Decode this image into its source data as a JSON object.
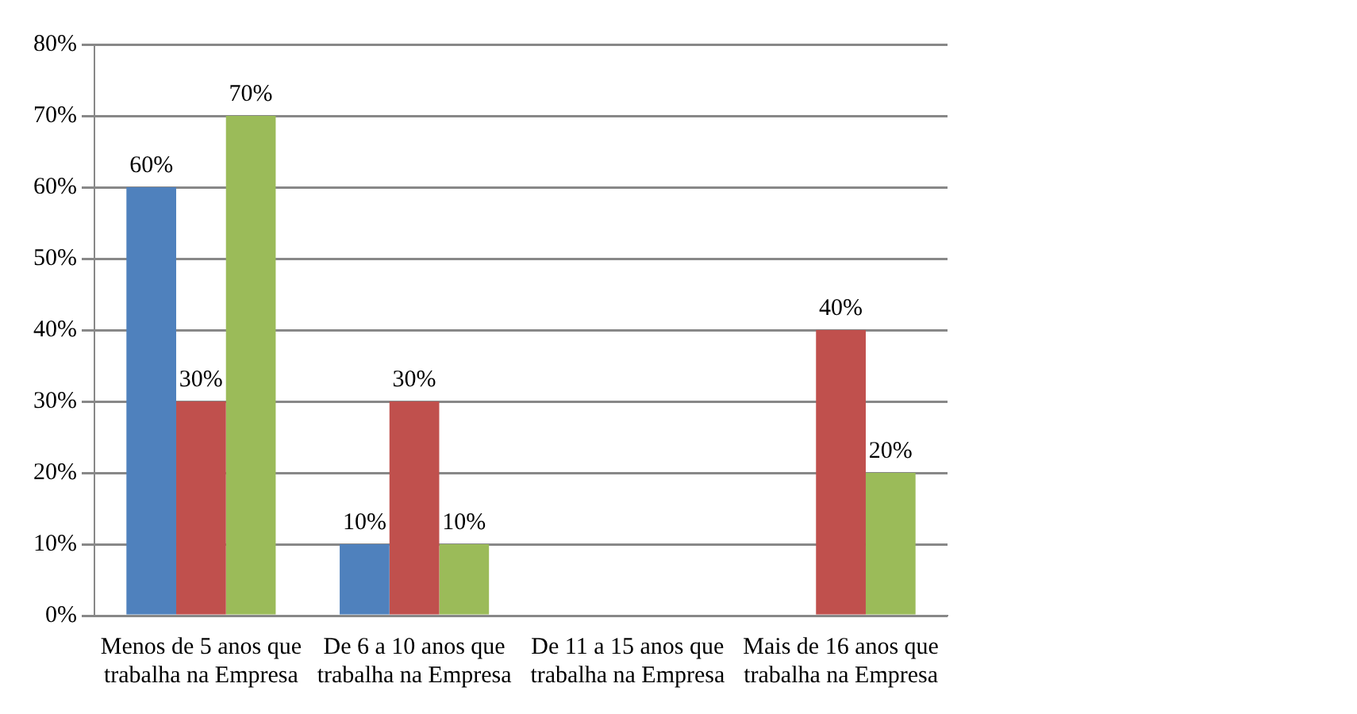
{
  "chart_data": {
    "type": "bar",
    "categories": [
      "Menos de 5 anos que trabalha na Empresa",
      "De 6 a 10 anos que trabalha na Empresa",
      "De 11 a 15 anos que trabalha na Empresa",
      "Mais de 16 anos que trabalha na Empresa"
    ],
    "series": [
      {
        "color": "#4f81bd",
        "values": [
          60,
          10,
          null,
          null
        ],
        "value_labels": [
          "60%",
          "10%",
          null,
          null
        ]
      },
      {
        "color": "#c0504d",
        "values": [
          30,
          30,
          null,
          40
        ],
        "value_labels": [
          "30%",
          "30%",
          null,
          "40%"
        ]
      },
      {
        "color": "#9bbb59",
        "values": [
          70,
          10,
          null,
          20
        ],
        "value_labels": [
          "70%",
          "10%",
          null,
          "20%"
        ]
      }
    ],
    "ylim": [
      0,
      80
    ],
    "yticks": [
      {
        "value": 0,
        "label": "0%"
      },
      {
        "value": 10,
        "label": "10%"
      },
      {
        "value": 20,
        "label": "20%"
      },
      {
        "value": 30,
        "label": "30%"
      },
      {
        "value": 40,
        "label": "40%"
      },
      {
        "value": 50,
        "label": "50%"
      },
      {
        "value": 60,
        "label": "60%"
      },
      {
        "value": 70,
        "label": "70%"
      },
      {
        "value": 80,
        "label": "80%"
      }
    ],
    "grid": "y",
    "legend": false
  }
}
